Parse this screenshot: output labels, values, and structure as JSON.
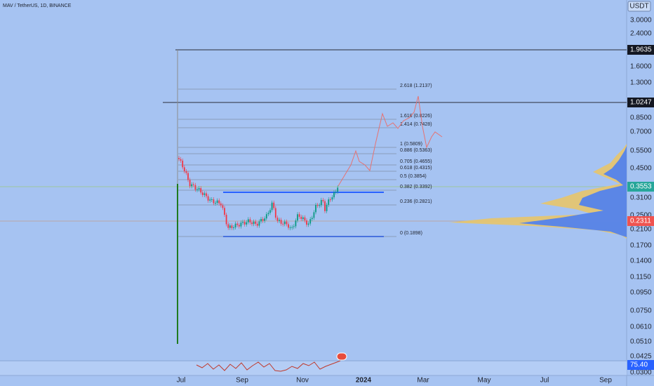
{
  "header": {
    "symbol": "MAV / TetherUS, 1D, BINANCE",
    "currency": "USDT"
  },
  "price_axis": [
    "3.0000",
    "2.4000",
    "1.6000",
    "1.3000",
    "0.8500",
    "0.7000",
    "0.5500",
    "0.4500",
    "0.3100",
    "0.2500",
    "0.2100",
    "0.1700",
    "0.1400",
    "0.1150",
    "0.0950",
    "0.0750",
    "0.0610",
    "0.0510",
    "0.0425",
    "0.0300"
  ],
  "badges": [
    "1.9635",
    "1.0247",
    "0.3553",
    "0.2311",
    "75.40"
  ],
  "fib_levels": [
    "2.618 (1.2137)",
    "1.618 (0.8226)",
    "1.414 (0.7428)",
    "1 (0.5809)",
    "0.886 (0.5363)",
    "0.705 (0.4655)",
    "0.618 (0.4315)",
    "0.5 (0.3854)",
    "0.382 (0.3392)",
    "0.236 (0.2821)",
    "0 (0.1898)"
  ],
  "time_axis": [
    "Jul",
    "Sep",
    "Nov",
    "2024",
    "Mar",
    "May",
    "Jul",
    "Sep"
  ]
}
